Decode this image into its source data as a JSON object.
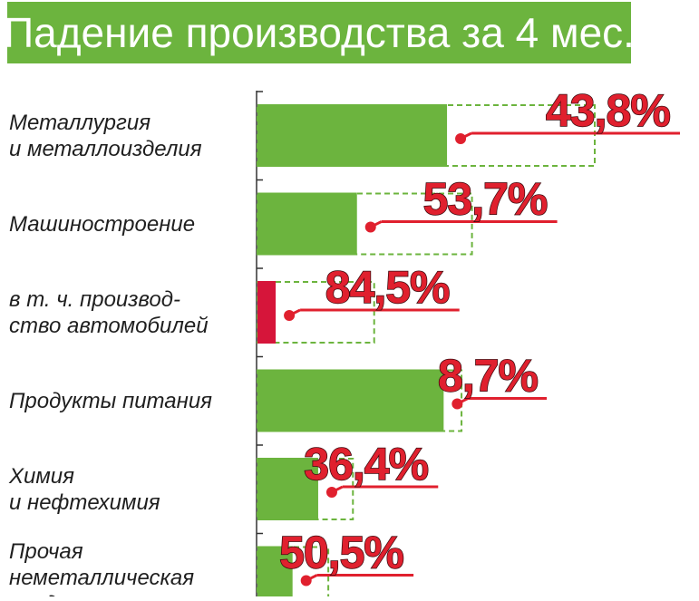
{
  "title": "Падение производства за 4 мес.",
  "colors": {
    "title_bg": "#6cb43e",
    "bar": "#6cb43e",
    "bar_highlight": "#d6153a",
    "label": "#e0202e",
    "axis": "#333333"
  },
  "chart_data": {
    "type": "bar",
    "orientation": "horizontal",
    "title": "Падение производства за 4 мес.",
    "categories": [
      [
        "Металлургия",
        "и металлоизделия"
      ],
      [
        "Машиностроение"
      ],
      [
        "в т. ч. производ-",
        "ство автомобилей"
      ],
      [
        "Продукты питания"
      ],
      [
        "Химия",
        "и нефтехимия"
      ],
      [
        "Прочая",
        "неметаллическая",
        "продукция"
      ]
    ],
    "previous_level": [
      100,
      63.6,
      34.6,
      60.5,
      28.3,
      21.0
    ],
    "current_level": [
      56.2,
      29.5,
      5.4,
      55.2,
      18.0,
      10.4
    ],
    "values": [
      43.8,
      53.7,
      84.5,
      8.7,
      36.4,
      50.5
    ],
    "labels": [
      "43,8%",
      "53,7%",
      "84,5%",
      "8,7%",
      "36,4%",
      "50,5%"
    ],
    "highlight_index": 2
  }
}
